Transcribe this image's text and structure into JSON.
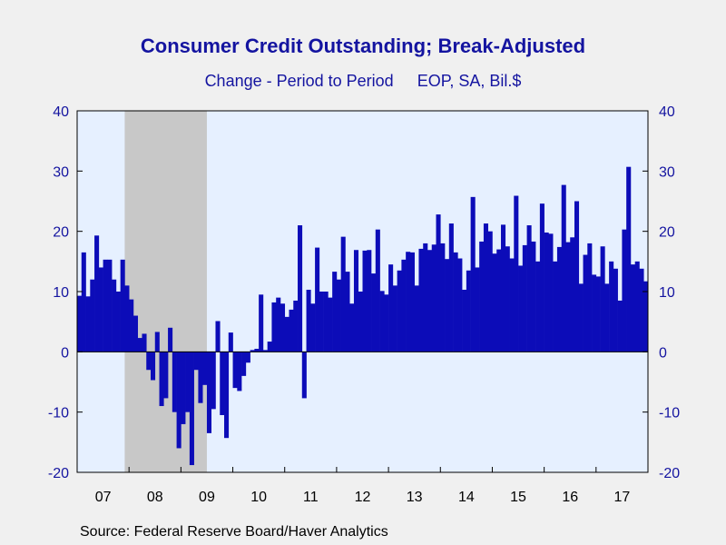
{
  "chart_data": {
    "type": "bar",
    "title": "Consumer Credit Outstanding; Break-Adjusted",
    "subtitle_left": "Change - Period to Period",
    "subtitle_right": "EOP, SA, Bil.$",
    "source": "Source:  Federal Reserve Board/Haver Analytics",
    "ylim": [
      -20,
      40
    ],
    "y_ticks": [
      40,
      30,
      20,
      10,
      0,
      -10,
      -20
    ],
    "x_tick_labels": [
      "07",
      "08",
      "09",
      "10",
      "11",
      "12",
      "13",
      "14",
      "15",
      "16",
      "17"
    ],
    "start": "2007-01",
    "end": "2017-10",
    "recession": {
      "start": "2007-12",
      "end": "2009-06"
    },
    "colors": {
      "bar": "#0c0cb8",
      "recession": "#c8c8c8",
      "plot_bg": "#e6f0ff",
      "text": "#1414a0"
    },
    "values": [
      9.3,
      16.5,
      9.2,
      12.0,
      19.3,
      14.0,
      15.3,
      15.3,
      12.0,
      10.0,
      15.3,
      11.0,
      8.7,
      6.0,
      2.3,
      3.0,
      -3.0,
      -4.7,
      3.3,
      -9.0,
      -7.7,
      4.0,
      -10.0,
      -16.0,
      -12.0,
      -10.0,
      -18.8,
      -3.0,
      -8.5,
      -5.5,
      -13.5,
      -9.5,
      5.1,
      -10.5,
      -14.3,
      3.2,
      -6.0,
      -6.5,
      -4.0,
      -1.8,
      0.3,
      0.5,
      9.5,
      0.3,
      1.7,
      8.2,
      9.0,
      8.0,
      5.8,
      7.0,
      8.5,
      21.0,
      -7.7,
      10.3,
      8.0,
      17.3,
      10.0,
      10.0,
      9.0,
      13.3,
      12.0,
      19.1,
      13.3,
      8.0,
      16.9,
      10.0,
      16.8,
      16.9,
      13.0,
      20.3,
      10.1,
      9.5,
      14.5,
      11.0,
      13.5,
      15.3,
      16.6,
      16.5,
      11.0,
      17.1,
      18.0,
      16.9,
      17.8,
      22.8,
      18.0,
      15.4,
      21.3,
      16.5,
      15.5,
      10.3,
      13.5,
      25.7,
      14.0,
      18.3,
      21.3,
      20.0,
      16.3,
      17.0,
      21.1,
      17.5,
      15.5,
      25.9,
      14.3,
      17.7,
      21.0,
      18.3,
      15.0,
      24.6,
      19.8,
      19.6,
      15.0,
      17.4,
      27.7,
      18.2,
      19.0,
      25.0,
      11.3,
      16.1,
      18.0,
      12.8,
      12.5,
      17.5,
      11.3,
      15.0,
      13.8,
      8.5,
      20.3,
      30.7,
      14.5,
      15.0,
      13.8,
      11.7
    ]
  }
}
